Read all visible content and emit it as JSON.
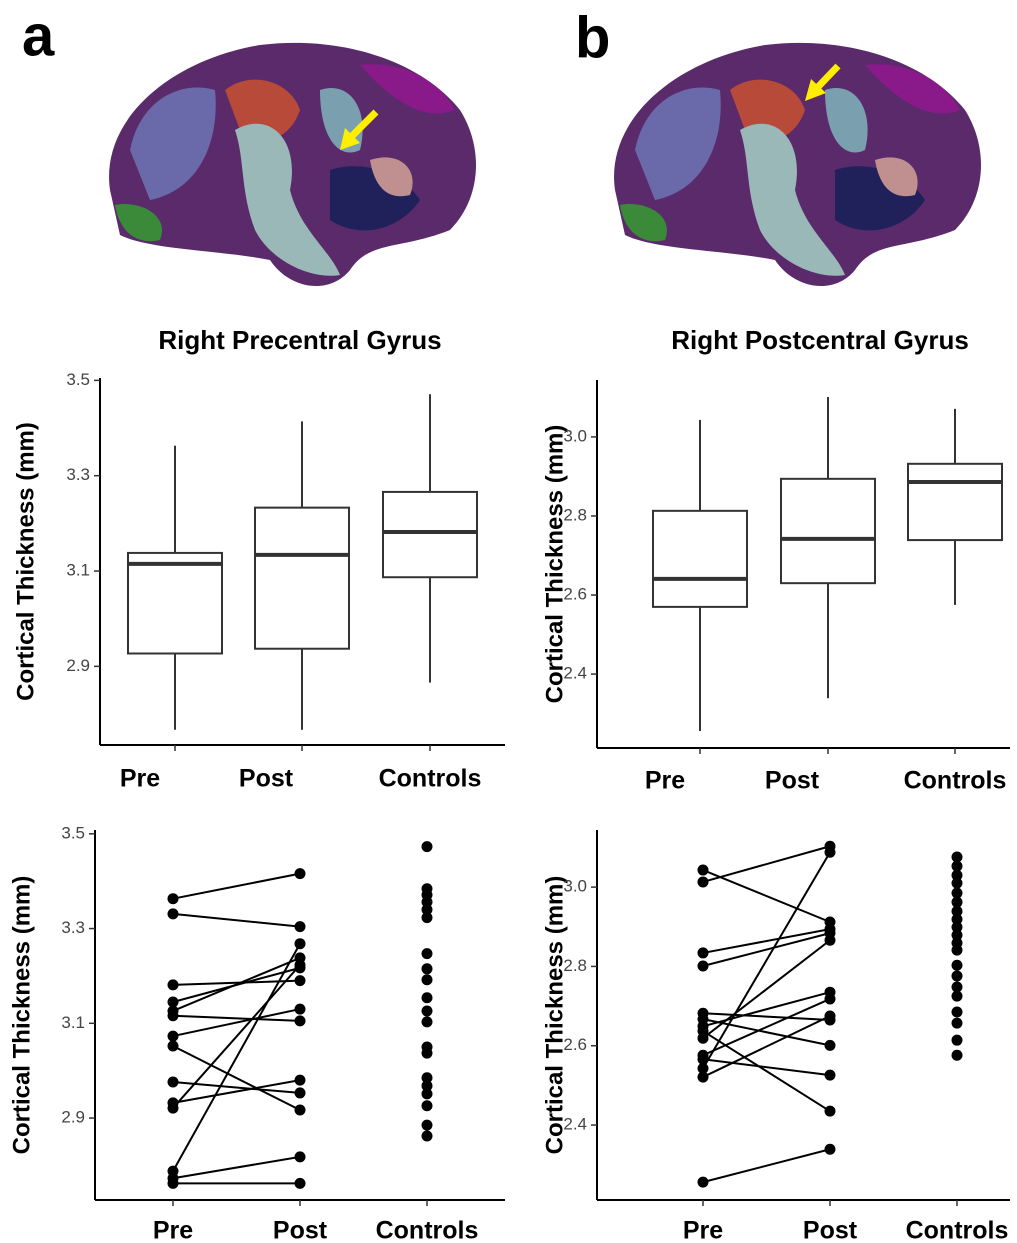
{
  "panels": [
    "a",
    "b"
  ],
  "chart_data": [
    {
      "type": "box",
      "title": "Right Precentral Gyrus",
      "y_label": "Cortical Thickness (mm)",
      "categories": [
        "Pre",
        "Post",
        "Controls"
      ],
      "whisker_low": [
        2.767,
        2.767,
        2.866
      ],
      "q1": [
        2.927,
        2.937,
        3.087
      ],
      "median": [
        3.115,
        3.134,
        3.182
      ],
      "q3": [
        3.138,
        3.233,
        3.266
      ],
      "whisker_high": [
        3.363,
        3.414,
        3.471
      ],
      "ylim": [
        2.735,
        3.505
      ],
      "yticks": [
        2.9,
        3.1,
        3.3,
        3.5
      ]
    },
    {
      "type": "box",
      "title": "Right Postcentral Gyrus",
      "y_label": "Cortical Thickness (mm)",
      "categories": [
        "Pre",
        "Post",
        "Controls"
      ],
      "whisker_low": [
        2.256,
        2.339,
        2.575
      ],
      "q1": [
        2.57,
        2.63,
        2.739
      ],
      "median": [
        2.641,
        2.742,
        2.886
      ],
      "q3": [
        2.813,
        2.894,
        2.932
      ],
      "whisker_high": [
        3.043,
        3.101,
        3.071
      ],
      "ylim": [
        2.213,
        3.144
      ],
      "yticks": [
        2.4,
        2.6,
        2.8,
        {
          "value": 3.0,
          "label": "3.0"
        }
      ]
    },
    {
      "type": "paired",
      "y_label": "Cortical Thickness (mm)",
      "categories": [
        "Pre",
        "Post",
        "Controls"
      ],
      "groups": [
        [
          3.363,
          3.331,
          3.181,
          3.145,
          3.126,
          3.116,
          3.073,
          3.052,
          2.976,
          2.932,
          2.921,
          2.788,
          2.773,
          2.762
        ],
        [
          3.416,
          3.304,
          3.19,
          3.217,
          3.238,
          3.105,
          3.13,
          2.917,
          2.953,
          2.98,
          3.223,
          3.268,
          2.818,
          2.762
        ],
        [
          3.473,
          3.384,
          3.371,
          3.356,
          3.34,
          3.323,
          3.247,
          3.215,
          3.192,
          3.154,
          3.126,
          3.103,
          3.05,
          3.037,
          2.985,
          2.968,
          2.951,
          2.926,
          2.885,
          2.862
        ]
      ],
      "ylim": [
        2.727,
        3.508
      ],
      "yticks": [
        2.9,
        3.1,
        3.3,
        3.5
      ]
    },
    {
      "type": "paired",
      "y_label": "Cortical Thickness (mm)",
      "categories": [
        "Pre",
        "Post",
        "Controls"
      ],
      "groups": [
        [
          3.043,
          3.013,
          2.834,
          2.801,
          2.682,
          2.667,
          2.649,
          2.637,
          2.619,
          2.576,
          2.566,
          2.543,
          2.521,
          2.256
        ],
        [
          2.912,
          3.103,
          2.894,
          2.884,
          2.665,
          2.601,
          2.735,
          2.435,
          2.866,
          2.718,
          2.526,
          3.088,
          2.675,
          2.339
        ],
        [
          3.076,
          3.053,
          3.03,
          3.01,
          2.985,
          2.962,
          2.939,
          2.919,
          2.899,
          2.879,
          2.859,
          2.841,
          2.803,
          2.776,
          2.748,
          2.725,
          2.685,
          2.657,
          2.614,
          2.576
        ]
      ],
      "ylim": [
        2.211,
        3.144
      ],
      "yticks": [
        2.4,
        2.6,
        2.8,
        {
          "value": 3.0,
          "label": "3.0"
        }
      ]
    }
  ]
}
